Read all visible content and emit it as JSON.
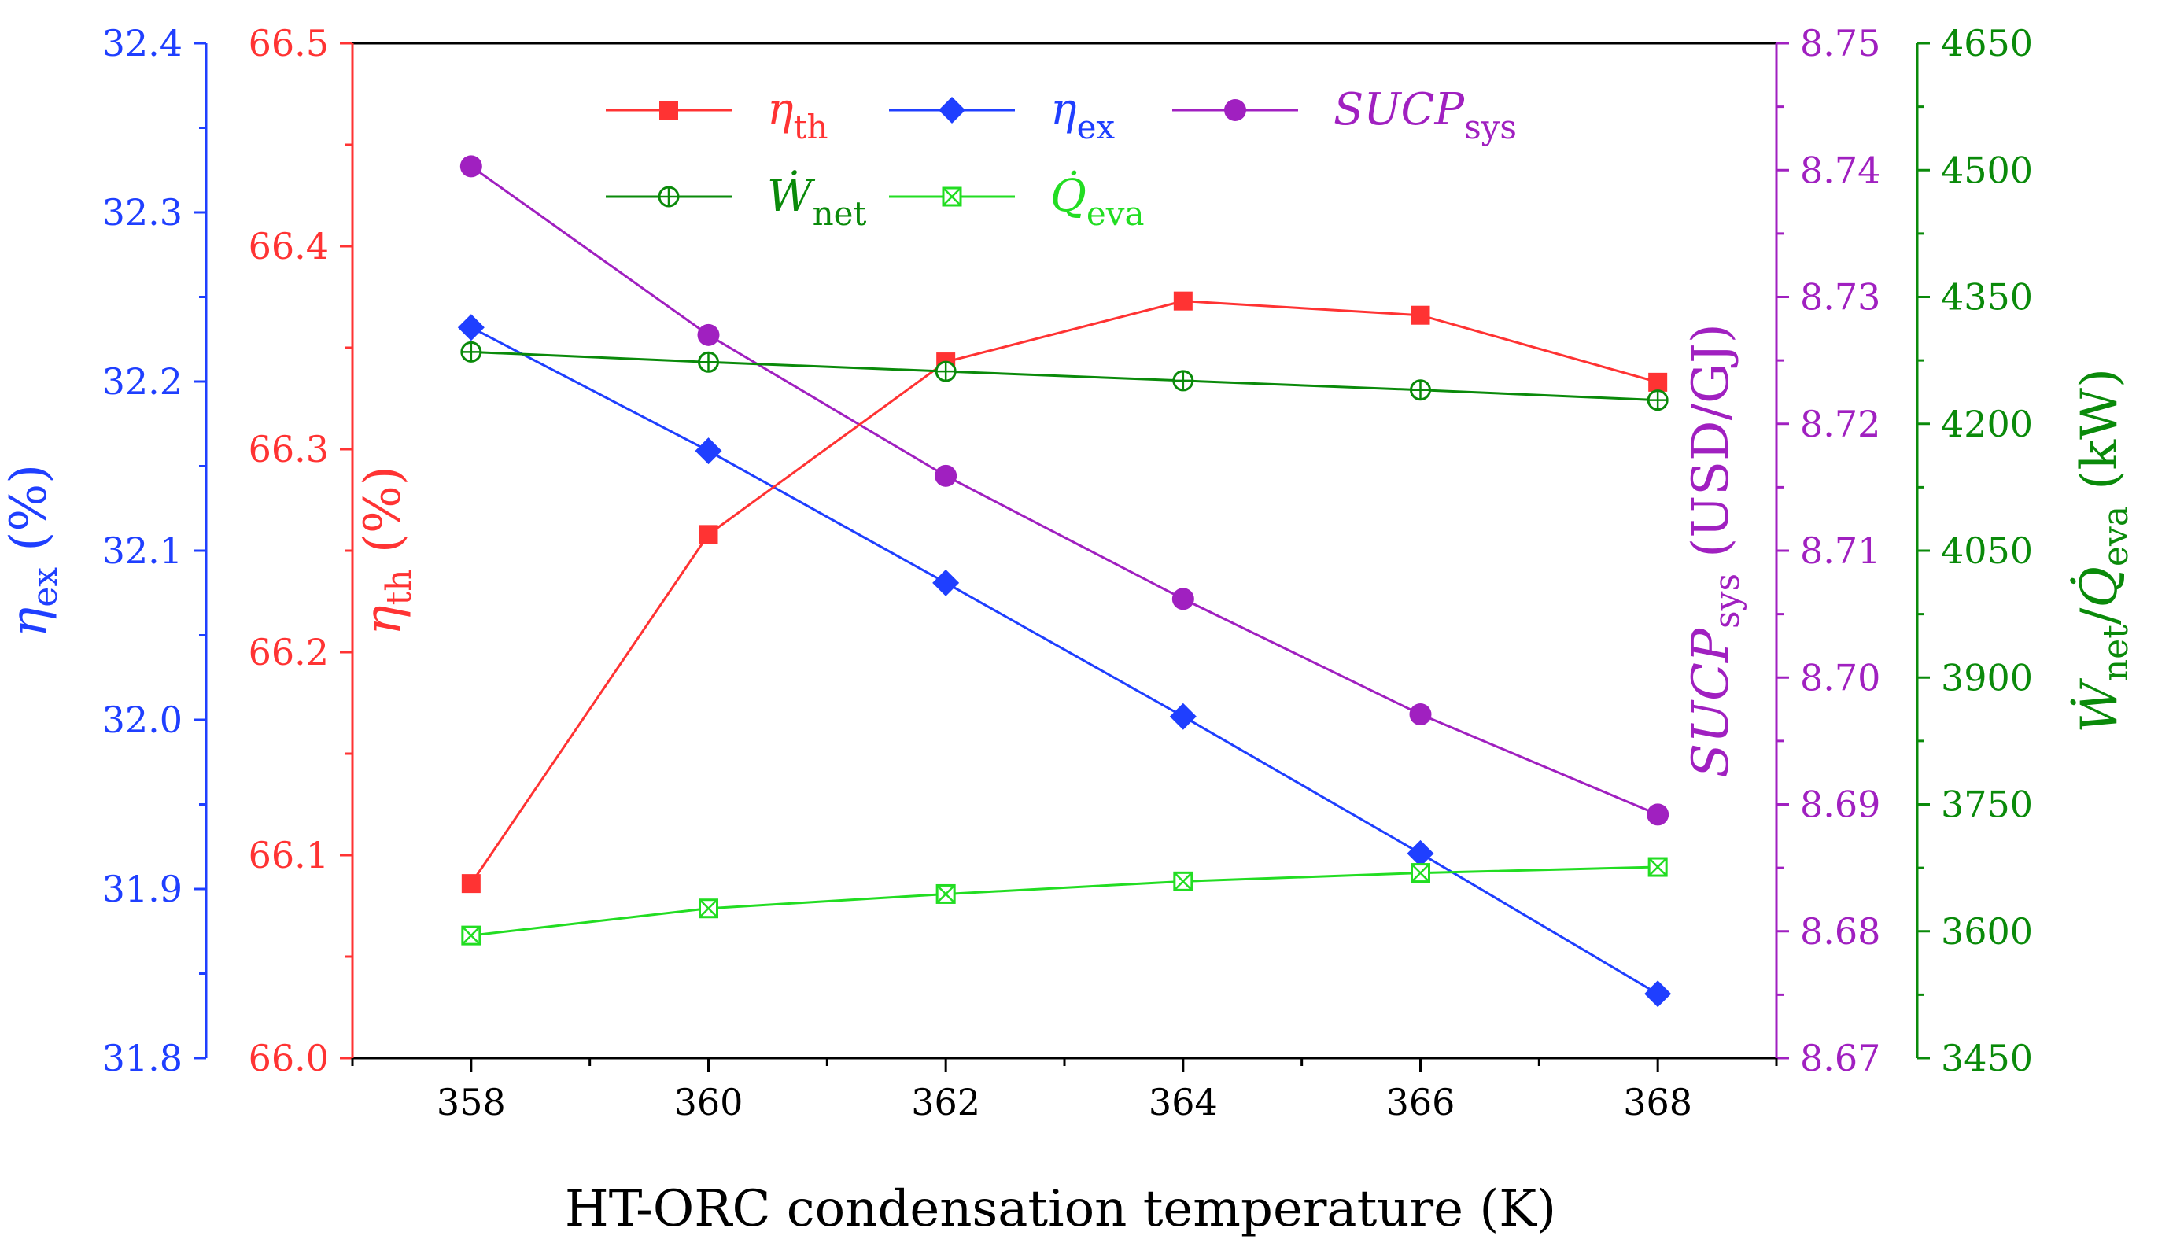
{
  "chart_data": {
    "type": "line",
    "xlabel": "HT-ORC condensation temperature (K)",
    "x": [
      358,
      360,
      362,
      364,
      366,
      368
    ],
    "x_ticks": [
      "358",
      "360",
      "362",
      "364",
      "366",
      "368"
    ],
    "xlim": [
      357,
      369
    ],
    "axes": [
      {
        "id": "ex",
        "side": "left-outer",
        "color": "#1f3fff",
        "label_sym": "η",
        "label_sub": "ex",
        "label_unit": " (%)",
        "ylim": [
          31.8,
          32.4
        ],
        "ticks": [
          "31.8",
          "31.9",
          "32.0",
          "32.1",
          "32.2",
          "32.3",
          "32.4"
        ]
      },
      {
        "id": "th",
        "side": "left-inner",
        "color": "#ff3333",
        "label_sym": "η",
        "label_sub": "th",
        "label_unit": " (%)",
        "ylim": [
          66.0,
          66.5
        ],
        "ticks": [
          "66.0",
          "66.1",
          "66.2",
          "66.3",
          "66.4",
          "66.5"
        ]
      },
      {
        "id": "sucp",
        "side": "right-inner",
        "color": "#a020c0",
        "label_sym": "SUCP",
        "label_sub": "sys",
        "label_unit": " (USD/GJ)",
        "ylim": [
          8.67,
          8.75
        ],
        "ticks": [
          "8.67",
          "8.68",
          "8.69",
          "8.70",
          "8.71",
          "8.72",
          "8.73",
          "8.74",
          "8.75"
        ]
      },
      {
        "id": "power",
        "side": "right-outer",
        "color": "#0a8a0a",
        "label_sym": "Ẇ",
        "label_sub": "net",
        "label_mid": "/",
        "label_sym2": "Q̇",
        "label_sub2": "eva",
        "label_unit": " (kW)",
        "ylim": [
          3450,
          4650
        ],
        "ticks": [
          "3450",
          "3600",
          "3750",
          "3900",
          "4050",
          "4200",
          "4350",
          "4500",
          "4650"
        ]
      }
    ],
    "series": [
      {
        "name": "η_th",
        "sym": "η",
        "sub": "th",
        "axis": "th",
        "color": "#ff3333",
        "marker": "square",
        "values": [
          66.086,
          66.258,
          66.343,
          66.373,
          66.366,
          66.333
        ]
      },
      {
        "name": "η_ex",
        "sym": "η",
        "sub": "ex",
        "axis": "ex",
        "color": "#1f3fff",
        "marker": "diamond",
        "values": [
          32.232,
          32.159,
          32.081,
          32.002,
          31.921,
          31.838
        ]
      },
      {
        "name": "SUCP_sys",
        "sym": "SUCP",
        "sub": "sys",
        "axis": "sucp",
        "color": "#a020c0",
        "marker": "circle",
        "values": [
          8.7403,
          8.727,
          8.7159,
          8.7062,
          8.6971,
          8.6892
        ]
      },
      {
        "name": "W_net",
        "sym": "Ẇ",
        "sub": "net",
        "axis": "power",
        "color": "#0a8a0a",
        "marker": "circle-plus",
        "values": [
          4285,
          4273,
          4262,
          4251,
          4240,
          4228
        ]
      },
      {
        "name": "Q_eva",
        "sym": "Q̇",
        "sub": "eva",
        "axis": "power",
        "color": "#22dd22",
        "marker": "square-x",
        "values": [
          3595,
          3627,
          3644,
          3659,
          3669,
          3676
        ]
      }
    ]
  }
}
